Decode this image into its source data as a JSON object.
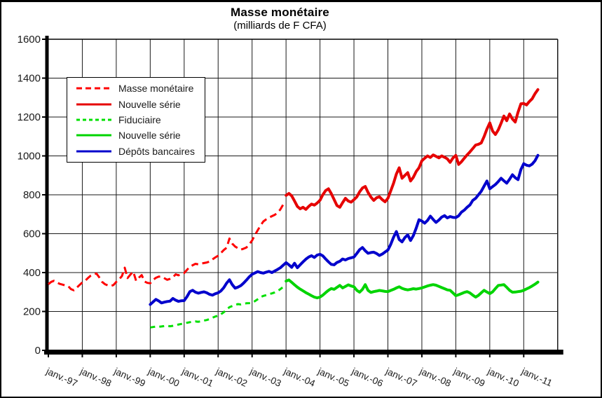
{
  "chart_data": {
    "type": "line",
    "title": "Masse monétaire",
    "subtitle": "(milliards de F CFA)",
    "xlabel": "",
    "ylabel": "",
    "ylim": [
      0,
      1600
    ],
    "ytick_interval": 200,
    "ytick_labels": [
      "0",
      "200",
      "400",
      "600",
      "800",
      "1000",
      "1200",
      "1400",
      "1600"
    ],
    "xtick_labels": [
      "janv.-97",
      "janv.-98",
      "janv.-99",
      "janv.-00",
      "janv.-01",
      "janv.-02",
      "janv.-03",
      "janv.-04",
      "janv.-05",
      "janv.-06",
      "janv.-07",
      "janv.-08",
      "janv.-09",
      "janv.-10",
      "janv.-11"
    ],
    "x_range_years": [
      1997,
      2012
    ],
    "frequency": "monthly",
    "grid": true,
    "grid_color": "#1a1a1a",
    "axis_color": "#000000",
    "background": "#ffffff",
    "legend_position": "top-left-inside",
    "series": [
      {
        "name": "Masse monétaire",
        "color": "#ff0000",
        "style": "dashed",
        "dasharray": "10,6",
        "width": 3,
        "start_year": 1997,
        "start_month": 1,
        "values": [
          340,
          352,
          358,
          350,
          342,
          338,
          334,
          330,
          315,
          309,
          322,
          336,
          350,
          358,
          372,
          385,
          392,
          395,
          375,
          352,
          340,
          334,
          331,
          336,
          352,
          365,
          382,
          425,
          372,
          390,
          405,
          358,
          374,
          387,
          354,
          347,
          345,
          362,
          373,
          379,
          380,
          371,
          363,
          368,
          376,
          391,
          386,
          393,
          398,
          414,
          430,
          438,
          445,
          442,
          446,
          449,
          452,
          457,
          468,
          478,
          487,
          501,
          516,
          528,
          575,
          549,
          534,
          525,
          518,
          523,
          529,
          545,
          565,
          592,
          618,
          642,
          663,
          674,
          683,
          690,
          697,
          707,
          725,
          750
        ]
      },
      {
        "name": "Nouvelle série",
        "color": "#e60000",
        "style": "solid",
        "width": 4,
        "start_year": 2004,
        "start_month": 1,
        "values": [
          797,
          807,
          795,
          768,
          740,
          728,
          736,
          725,
          740,
          752,
          747,
          758,
          772,
          800,
          822,
          831,
          806,
          775,
          745,
          736,
          760,
          782,
          768,
          762,
          775,
          789,
          815,
          835,
          843,
          812,
          788,
          771,
          785,
          790,
          775,
          764,
          782,
          820,
          860,
          907,
          939,
          885,
          900,
          914,
          871,
          890,
          920,
          939,
          975,
          988,
          1000,
          992,
          1005,
          998,
          990,
          1000,
          993,
          985,
          967,
          990,
          1003,
          956,
          970,
          988,
          1005,
          1021,
          1038,
          1056,
          1060,
          1067,
          1100,
          1138,
          1170,
          1128,
          1110,
          1134,
          1168,
          1205,
          1181,
          1216,
          1190,
          1174,
          1225,
          1268,
          1270,
          1262,
          1280,
          1294,
          1320,
          1341
        ]
      },
      {
        "name": "Fiduciaire",
        "color": "#00e000",
        "style": "dashed",
        "dasharray": "7,6",
        "width": 3,
        "start_year": 2000,
        "start_month": 1,
        "values": [
          118,
          120,
          122,
          121,
          123,
          125,
          126,
          124,
          126,
          129,
          133,
          136,
          139,
          142,
          145,
          147,
          149,
          147,
          150,
          153,
          156,
          161,
          168,
          174,
          178,
          186,
          196,
          210,
          222,
          228,
          234,
          238,
          236,
          239,
          242,
          243,
          245,
          253,
          263,
          274,
          280,
          284,
          289,
          293,
          298,
          305,
          315,
          326
        ]
      },
      {
        "name": "Nouvelle série",
        "color": "#00d400",
        "style": "solid",
        "width": 4,
        "start_year": 2004,
        "start_month": 1,
        "values": [
          356,
          362,
          350,
          337,
          325,
          315,
          306,
          297,
          289,
          281,
          274,
          270,
          274,
          284,
          297,
          309,
          318,
          314,
          324,
          334,
          321,
          329,
          337,
          331,
          327,
          309,
          299,
          314,
          338,
          308,
          298,
          302,
          305,
          308,
          306,
          303,
          302,
          308,
          314,
          321,
          327,
          319,
          314,
          311,
          314,
          317,
          315,
          318,
          321,
          326,
          331,
          335,
          338,
          335,
          329,
          323,
          317,
          311,
          309,
          295,
          281,
          286,
          292,
          298,
          302,
          295,
          284,
          274,
          283,
          296,
          309,
          300,
          292,
          301,
          318,
          334,
          336,
          338,
          324,
          309,
          299,
          300,
          302,
          304,
          309,
          316,
          323,
          331,
          340,
          351
        ]
      },
      {
        "name": "Dépôts bancaires",
        "color": "#0000cc",
        "style": "solid",
        "width": 4,
        "start_year": 2000,
        "start_month": 1,
        "values": [
          236,
          249,
          262,
          254,
          244,
          248,
          251,
          253,
          267,
          258,
          252,
          255,
          256,
          276,
          302,
          309,
          299,
          294,
          298,
          301,
          296,
          288,
          284,
          291,
          296,
          306,
          322,
          346,
          363,
          338,
          320,
          325,
          333,
          346,
          361,
          378,
          391,
          398,
          405,
          400,
          397,
          402,
          406,
          400,
          408,
          416,
          425,
          438,
          451,
          440,
          427,
          448,
          425,
          440,
          455,
          469,
          480,
          487,
          478,
          490,
          494,
          486,
          470,
          455,
          442,
          440,
          452,
          458,
          470,
          465,
          472,
          476,
          480,
          498,
          518,
          529,
          512,
          499,
          503,
          505,
          498,
          488,
          495,
          506,
          516,
          545,
          582,
          611,
          570,
          558,
          580,
          594,
          565,
          590,
          629,
          672,
          665,
          654,
          668,
          690,
          673,
          658,
          670,
          685,
          693,
          681,
          688,
          684,
          683,
          692,
          711,
          721,
          736,
          748,
          771,
          782,
          800,
          818,
          845,
          871,
          831,
          842,
          853,
          868,
          885,
          872,
          860,
          880,
          903,
          888,
          878,
          930,
          960,
          952,
          949,
          958,
          975,
          1003
        ]
      }
    ]
  }
}
